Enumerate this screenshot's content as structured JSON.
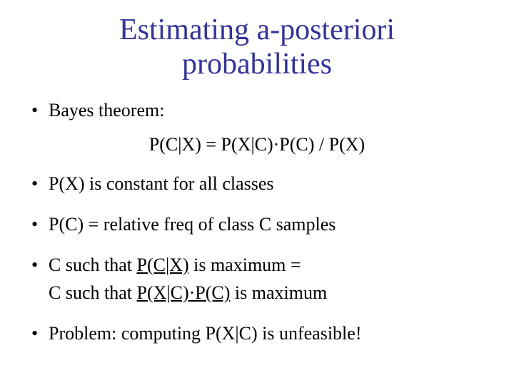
{
  "colors": {
    "title": "#333399",
    "body": "#000000",
    "background": "#ffffff"
  },
  "typography": {
    "title_fontsize": 42,
    "body_fontsize": 26,
    "font_family": "Times New Roman"
  },
  "title_line1": "Estimating a-posteriori",
  "title_line2": "probabilities",
  "bullets": {
    "b1": "Bayes theorem:",
    "formula": "P(C|X) = P(X|C)·P(C) / P(X)",
    "b2": "P(X) is constant for all classes",
    "b3": "P(C) = relative freq of class C samples",
    "b4_pre": "C such that ",
    "b4_u": "P(C|X)",
    "b4_post": " is maximum =",
    "b4b_pre": "C such that ",
    "b4b_u": "P(X|C)·P(C)",
    "b4b_post": " is maximum",
    "b5": "Problem: computing P(X|C) is unfeasible!"
  }
}
